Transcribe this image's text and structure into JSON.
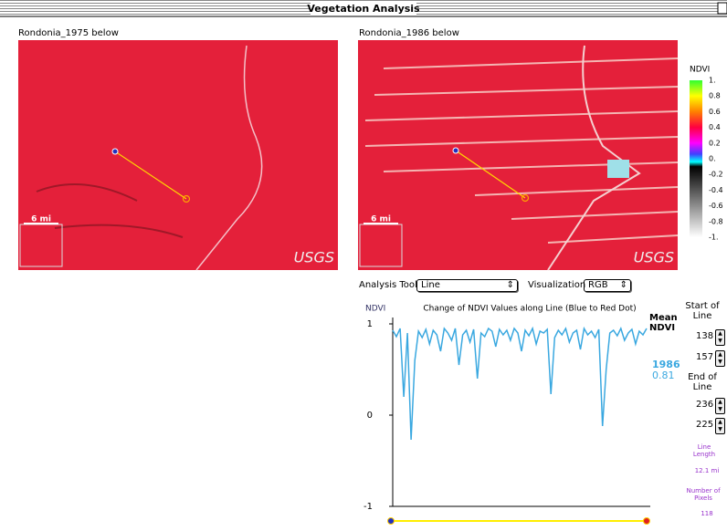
{
  "window": {
    "title": "Vegetation Analysis"
  },
  "panels": [
    {
      "label": "Rondonia_1975 below",
      "scale": "6 mi",
      "credit": "USGS"
    },
    {
      "label": "Rondonia_1986 below",
      "scale": "6 mi",
      "credit": "USGS"
    }
  ],
  "ndvi_legend": {
    "title": "NDVI",
    "labels": [
      "1.",
      "0.8",
      "0.6",
      "0.4",
      "0.2",
      "0.",
      "-0.2",
      "-0.4",
      "-0.6",
      "-0.8",
      "-1."
    ]
  },
  "controls": {
    "tool_label": "Analysis Tool",
    "tool_value": "Line",
    "vis_label": "Visualization",
    "vis_value": "RGB"
  },
  "chart": {
    "type": "line",
    "title": "Change of NDVI Values along Line (Blue to Red Dot)",
    "y_label": "NDVI",
    "ylim": [
      -1,
      1
    ],
    "yticks": [
      1,
      0,
      -1
    ],
    "mean_label": "Mean NDVI",
    "series": [
      {
        "name": "1986",
        "color": "#3aa8e0",
        "mean": 0.81,
        "values": [
          0.93,
          0.86,
          0.95,
          0.2,
          0.9,
          -0.27,
          0.6,
          0.92,
          0.85,
          0.94,
          0.78,
          0.93,
          0.88,
          0.7,
          0.95,
          0.9,
          0.82,
          0.95,
          0.55,
          0.88,
          0.93,
          0.8,
          0.94,
          0.4,
          0.9,
          0.86,
          0.95,
          0.92,
          0.75,
          0.94,
          0.88,
          0.93,
          0.82,
          0.95,
          0.9,
          0.7,
          0.93,
          0.87,
          0.95,
          0.78,
          0.92,
          0.9,
          0.94,
          0.23,
          0.85,
          0.93,
          0.88,
          0.95,
          0.8,
          0.9,
          0.93,
          0.72,
          0.95,
          0.88,
          0.92,
          0.85,
          0.94,
          -0.12,
          0.5,
          0.9,
          0.93,
          0.87,
          0.95,
          0.82,
          0.9,
          0.94,
          0.78,
          0.92,
          0.88,
          0.95
        ]
      }
    ]
  },
  "info": {
    "start_label": "Start of Line",
    "start_x": 138,
    "start_y": 157,
    "end_label": "End of Line",
    "end_x": 236,
    "end_y": 225,
    "length_label": "Line Length",
    "length_value": "12.1 mi",
    "pixels_label": "Number of Pixels",
    "pixels_value": 118
  }
}
